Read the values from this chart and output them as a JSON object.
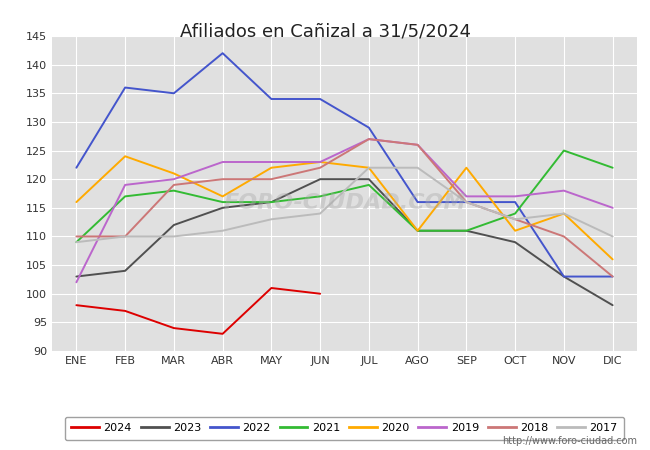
{
  "title": "Afiliados en Cañizal a 31/5/2024",
  "ylim": [
    90,
    145
  ],
  "yticks": [
    90,
    95,
    100,
    105,
    110,
    115,
    120,
    125,
    130,
    135,
    140,
    145
  ],
  "months": [
    "ENE",
    "FEB",
    "MAR",
    "ABR",
    "MAY",
    "JUN",
    "JUL",
    "AGO",
    "SEP",
    "OCT",
    "NOV",
    "DIC"
  ],
  "url": "http://www.foro-ciudad.com",
  "series": {
    "2024": {
      "color": "#dd0000",
      "data": [
        98,
        97,
        94,
        93,
        101,
        100,
        null,
        null,
        null,
        null,
        null,
        null
      ]
    },
    "2023": {
      "color": "#505050",
      "data": [
        103,
        104,
        112,
        115,
        116,
        120,
        120,
        111,
        111,
        109,
        103,
        98
      ]
    },
    "2022": {
      "color": "#4455cc",
      "data": [
        122,
        136,
        135,
        142,
        134,
        134,
        129,
        116,
        116,
        116,
        103,
        103
      ]
    },
    "2021": {
      "color": "#33bb33",
      "data": [
        109,
        117,
        118,
        116,
        116,
        117,
        119,
        111,
        111,
        114,
        125,
        122
      ]
    },
    "2020": {
      "color": "#ffaa00",
      "data": [
        116,
        124,
        121,
        117,
        122,
        123,
        122,
        111,
        122,
        111,
        114,
        106
      ]
    },
    "2019": {
      "color": "#bb66cc",
      "data": [
        102,
        119,
        120,
        123,
        123,
        123,
        127,
        126,
        117,
        117,
        118,
        115
      ]
    },
    "2018": {
      "color": "#cc7777",
      "data": [
        110,
        110,
        119,
        120,
        120,
        122,
        127,
        126,
        116,
        113,
        110,
        103
      ]
    },
    "2017": {
      "color": "#bbbbbb",
      "data": [
        109,
        110,
        110,
        111,
        113,
        114,
        122,
        122,
        116,
        113,
        114,
        110
      ]
    }
  },
  "legend_order": [
    "2024",
    "2023",
    "2022",
    "2021",
    "2020",
    "2019",
    "2018",
    "2017"
  ]
}
